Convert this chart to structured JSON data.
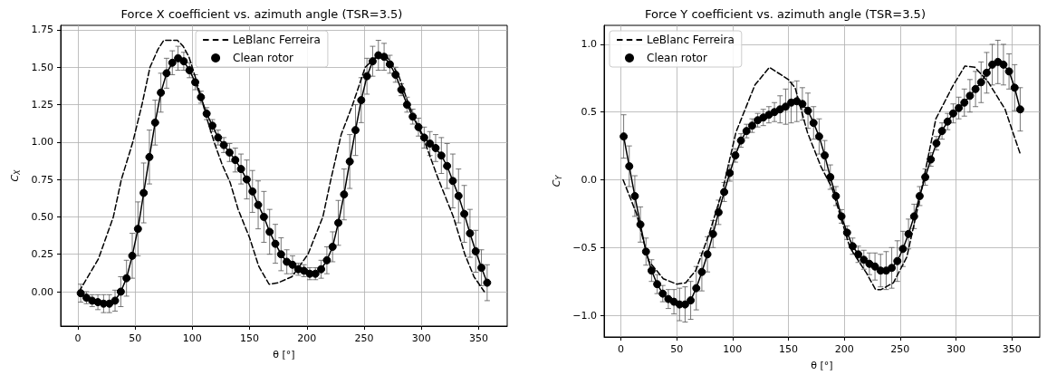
{
  "chart_data": [
    {
      "type": "line",
      "title": "Force X coefficient vs. azimuth angle (TSR=3.5)",
      "xlabel": "θ [°]",
      "ylabel": "C$_{X}$",
      "legend": "top",
      "grid": true,
      "xlim": [
        -15,
        375
      ],
      "ylim": [
        -0.23,
        1.78
      ],
      "xticks": [
        0,
        50,
        100,
        150,
        200,
        250,
        300,
        350
      ],
      "yticks": [
        {
          "value": 0,
          "label": "0.00"
        },
        {
          "value": 0.25,
          "label": "0.25"
        },
        {
          "value": 0.5,
          "label": "0.50"
        },
        {
          "value": 0.75,
          "label": "0.75"
        },
        {
          "value": 1,
          "label": "1.00"
        },
        {
          "value": 1.25,
          "label": "1.25"
        },
        {
          "value": 1.5,
          "label": "1.50"
        },
        {
          "value": 1.75,
          "label": "1.75"
        }
      ],
      "series": [
        {
          "name": "LeBlanc Ferreira",
          "color": "#000000",
          "line_style": "dashed",
          "marker": "none",
          "x": [
            1,
            18,
            31,
            38,
            48,
            56,
            63,
            70,
            75,
            87,
            92,
            97,
            104,
            113,
            119,
            126,
            133,
            140,
            150,
            158,
            167,
            175,
            187,
            201,
            214,
            221,
            230,
            240,
            251,
            262,
            270,
            280,
            289,
            303,
            315,
            328,
            338,
            346,
            355
          ],
          "values": [
            0.0,
            0.22,
            0.5,
            0.75,
            1.0,
            1.25,
            1.5,
            1.62,
            1.68,
            1.68,
            1.64,
            1.57,
            1.4,
            1.15,
            1.0,
            0.85,
            0.73,
            0.55,
            0.36,
            0.17,
            0.05,
            0.06,
            0.1,
            0.25,
            0.5,
            0.75,
            1.05,
            1.25,
            1.5,
            1.58,
            1.57,
            1.45,
            1.25,
            1.0,
            0.75,
            0.5,
            0.25,
            0.1,
            0.0
          ]
        },
        {
          "name": "Clean rotor",
          "color": "#000000",
          "line_style": "solid",
          "marker": "circle",
          "x": [
            2.5,
            7.5,
            12.5,
            17.5,
            22.5,
            27.5,
            32.5,
            37.5,
            42.5,
            47.5,
            52.5,
            57.5,
            62.5,
            67.5,
            72.5,
            77.5,
            82.5,
            87.5,
            92.5,
            97.5,
            102.5,
            107.5,
            112.5,
            117.5,
            122.5,
            127.5,
            132.5,
            137.5,
            142.5,
            147.5,
            152.5,
            157.5,
            162.5,
            167.5,
            172.5,
            177.5,
            182.5,
            187.5,
            192.5,
            197.5,
            202.5,
            207.5,
            212.5,
            217.5,
            222.5,
            227.5,
            232.5,
            237.5,
            242.5,
            247.5,
            252.5,
            257.5,
            262.5,
            267.5,
            272.5,
            277.5,
            282.5,
            287.5,
            292.5,
            297.5,
            302.5,
            307.5,
            312.5,
            317.5,
            322.5,
            327.5,
            332.5,
            337.5,
            342.5,
            347.5,
            352.5,
            357.5
          ],
          "values": [
            -0.01,
            -0.04,
            -0.06,
            -0.07,
            -0.08,
            -0.08,
            -0.06,
            0.0,
            0.09,
            0.24,
            0.42,
            0.66,
            0.9,
            1.13,
            1.33,
            1.46,
            1.53,
            1.56,
            1.54,
            1.48,
            1.4,
            1.3,
            1.19,
            1.11,
            1.03,
            0.98,
            0.93,
            0.88,
            0.82,
            0.75,
            0.67,
            0.58,
            0.5,
            0.4,
            0.32,
            0.25,
            0.2,
            0.18,
            0.15,
            0.14,
            0.12,
            0.12,
            0.15,
            0.21,
            0.3,
            0.46,
            0.65,
            0.87,
            1.08,
            1.28,
            1.44,
            1.54,
            1.58,
            1.57,
            1.52,
            1.45,
            1.35,
            1.25,
            1.17,
            1.1,
            1.03,
            0.99,
            0.96,
            0.91,
            0.84,
            0.74,
            0.64,
            0.52,
            0.39,
            0.27,
            0.16,
            0.06
          ],
          "errors": [
            0.06,
            0.04,
            0.04,
            0.05,
            0.06,
            0.06,
            0.07,
            0.1,
            0.12,
            0.15,
            0.18,
            0.2,
            0.18,
            0.15,
            0.13,
            0.1,
            0.08,
            0.08,
            0.06,
            0.05,
            0.05,
            0.04,
            0.04,
            0.04,
            0.05,
            0.05,
            0.06,
            0.08,
            0.1,
            0.13,
            0.14,
            0.16,
            0.17,
            0.15,
            0.13,
            0.11,
            0.08,
            0.06,
            0.04,
            0.04,
            0.04,
            0.04,
            0.06,
            0.09,
            0.1,
            0.15,
            0.17,
            0.18,
            0.17,
            0.15,
            0.12,
            0.1,
            0.1,
            0.09,
            0.06,
            0.05,
            0.04,
            0.05,
            0.05,
            0.06,
            0.07,
            0.08,
            0.09,
            0.12,
            0.15,
            0.18,
            0.18,
            0.19,
            0.16,
            0.14,
            0.12,
            0.12
          ]
        }
      ]
    },
    {
      "type": "line",
      "title": "Force Y coefficient vs. azimuth angle (TSR=3.5)",
      "xlabel": "θ [°]",
      "ylabel": "C$_{Y}$",
      "legend": "top left",
      "grid": true,
      "xlim": [
        -15,
        375
      ],
      "ylim": [
        -1.16,
        1.14
      ],
      "xticks": [
        0,
        50,
        100,
        150,
        200,
        250,
        300,
        350
      ],
      "yticks": [
        {
          "value": -1,
          "label": "−1.0"
        },
        {
          "value": -0.5,
          "label": "−0.5"
        },
        {
          "value": 0,
          "label": "0.0"
        },
        {
          "value": 0.5,
          "label": "0.5"
        },
        {
          "value": 1,
          "label": "1.0"
        }
      ],
      "series": [
        {
          "name": "LeBlanc Ferreira",
          "color": "#000000",
          "line_style": "dashed",
          "marker": "none",
          "x": [
            2,
            14,
            25,
            38,
            50,
            58,
            67,
            79,
            91,
            103,
            120,
            133,
            150,
            156,
            167,
            179,
            189,
            205,
            220,
            228,
            233,
            244,
            256,
            267,
            282,
            297,
            308,
            317,
            329,
            344,
            353,
            358
          ],
          "values": [
            0.0,
            -0.25,
            -0.6,
            -0.73,
            -0.77,
            -0.76,
            -0.67,
            -0.4,
            -0.08,
            0.35,
            0.7,
            0.83,
            0.74,
            0.68,
            0.35,
            0.1,
            -0.06,
            -0.5,
            -0.69,
            -0.81,
            -0.81,
            -0.76,
            -0.57,
            -0.16,
            0.45,
            0.69,
            0.84,
            0.83,
            0.72,
            0.52,
            0.3,
            0.18
          ]
        },
        {
          "name": "Clean rotor",
          "color": "#000000",
          "line_style": "solid",
          "marker": "circle",
          "x": [
            2.5,
            7.5,
            12.5,
            17.5,
            22.5,
            27.5,
            32.5,
            37.5,
            42.5,
            47.5,
            52.5,
            57.5,
            62.5,
            67.5,
            72.5,
            77.5,
            82.5,
            87.5,
            92.5,
            97.5,
            102.5,
            107.5,
            112.5,
            117.5,
            122.5,
            127.5,
            132.5,
            137.5,
            142.5,
            147.5,
            152.5,
            157.5,
            162.5,
            167.5,
            172.5,
            177.5,
            182.5,
            187.5,
            192.5,
            197.5,
            202.5,
            207.5,
            212.5,
            217.5,
            222.5,
            227.5,
            232.5,
            237.5,
            242.5,
            247.5,
            252.5,
            257.5,
            262.5,
            267.5,
            272.5,
            277.5,
            282.5,
            287.5,
            292.5,
            297.5,
            302.5,
            307.5,
            312.5,
            317.5,
            322.5,
            327.5,
            332.5,
            337.5,
            342.5,
            347.5,
            352.5,
            357.5
          ],
          "values": [
            0.32,
            0.1,
            -0.12,
            -0.33,
            -0.53,
            -0.67,
            -0.77,
            -0.84,
            -0.88,
            -0.9,
            -0.92,
            -0.92,
            -0.89,
            -0.8,
            -0.68,
            -0.55,
            -0.4,
            -0.24,
            -0.09,
            0.05,
            0.18,
            0.29,
            0.36,
            0.4,
            0.44,
            0.46,
            0.48,
            0.5,
            0.52,
            0.54,
            0.57,
            0.58,
            0.56,
            0.51,
            0.42,
            0.32,
            0.18,
            0.02,
            -0.12,
            -0.27,
            -0.39,
            -0.49,
            -0.55,
            -0.59,
            -0.62,
            -0.64,
            -0.67,
            -0.67,
            -0.65,
            -0.6,
            -0.51,
            -0.4,
            -0.27,
            -0.12,
            0.02,
            0.15,
            0.27,
            0.36,
            0.43,
            0.49,
            0.53,
            0.57,
            0.62,
            0.67,
            0.72,
            0.79,
            0.85,
            0.87,
            0.85,
            0.8,
            0.68,
            0.52
          ],
          "errors": [
            0.16,
            0.15,
            0.15,
            0.13,
            0.1,
            0.08,
            0.07,
            0.06,
            0.07,
            0.09,
            0.12,
            0.13,
            0.14,
            0.16,
            0.14,
            0.13,
            0.1,
            0.09,
            0.07,
            0.06,
            0.05,
            0.05,
            0.05,
            0.05,
            0.05,
            0.06,
            0.06,
            0.07,
            0.1,
            0.13,
            0.15,
            0.15,
            0.12,
            0.13,
            0.12,
            0.13,
            0.11,
            0.09,
            0.07,
            0.05,
            0.05,
            0.06,
            0.06,
            0.07,
            0.08,
            0.1,
            0.12,
            0.14,
            0.15,
            0.15,
            0.13,
            0.11,
            0.09,
            0.07,
            0.06,
            0.05,
            0.05,
            0.06,
            0.06,
            0.07,
            0.08,
            0.1,
            0.12,
            0.13,
            0.15,
            0.15,
            0.15,
            0.16,
            0.15,
            0.13,
            0.17,
            0.16
          ]
        }
      ]
    }
  ]
}
